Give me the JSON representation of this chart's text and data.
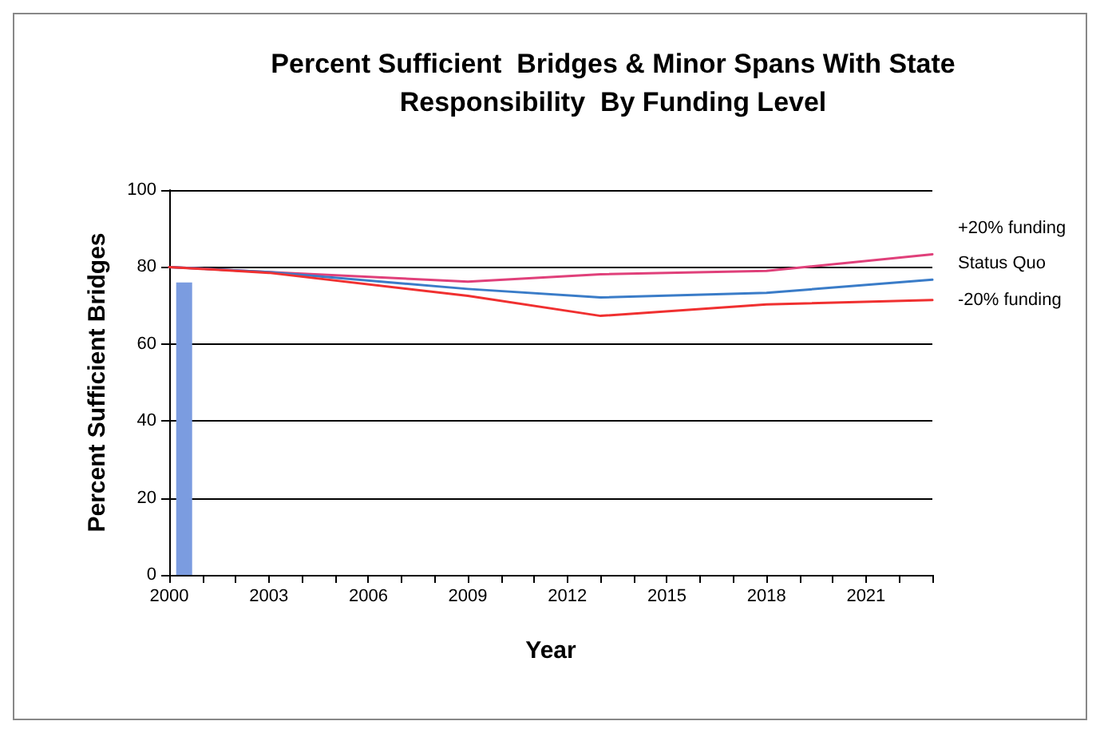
{
  "chart_data": {
    "type": "line",
    "title": "Percent Sufficient  Bridges & Minor Spans With State\nResponsibility  By Funding Level",
    "xlabel": "Year",
    "ylabel": "Percent Sufficient Bridges",
    "xlim": [
      2000,
      2023
    ],
    "xticks": [
      2000,
      {
        "value": 2001,
        "label": null
      },
      {
        "value": 2002,
        "label": null
      },
      2003,
      {
        "value": 2004,
        "label": null
      },
      {
        "value": 2005,
        "label": null
      },
      2006,
      {
        "value": 2007,
        "label": null
      },
      {
        "value": 2008,
        "label": null
      },
      2009,
      {
        "value": 2010,
        "label": null
      },
      {
        "value": 2011,
        "label": null
      },
      2012,
      {
        "value": 2013,
        "label": null
      },
      {
        "value": 2014,
        "label": null
      },
      2015,
      {
        "value": 2016,
        "label": null
      },
      {
        "value": 2017,
        "label": null
      },
      2018,
      {
        "value": 2019,
        "label": null
      },
      {
        "value": 2020,
        "label": null
      },
      2021,
      {
        "value": 2022,
        "label": null
      },
      {
        "value": 2023,
        "label": null
      }
    ],
    "ylim": [
      0,
      100
    ],
    "yticks": [
      0,
      20,
      40,
      60,
      80,
      100
    ],
    "grid": "y",
    "legend": false,
    "marker": "none",
    "line_style": "solid",
    "series": [
      {
        "type": "bar",
        "color": "#7b9ce0",
        "x": [
          2000.45
        ],
        "values": [
          76
        ]
      },
      {
        "name": "+20% funding",
        "color": "#e0407a",
        "x": [
          2000,
          2003,
          2009,
          2013,
          2018,
          2023
        ],
        "values": [
          80,
          78.7,
          76.2,
          78.1,
          79,
          83.3
        ]
      },
      {
        "name": "Status Quo",
        "color": "#3a7cc8",
        "x": [
          2000,
          2003,
          2009,
          2013,
          2018,
          2023
        ],
        "values": [
          80,
          78.7,
          74.3,
          72.1,
          73.3,
          76.7
        ]
      },
      {
        "name": "-20% funding",
        "color": "#f03030",
        "x": [
          2000,
          2003,
          2009,
          2013,
          2018,
          2023
        ],
        "values": [
          80,
          78.5,
          72.5,
          67.3,
          70.3,
          71.4
        ]
      }
    ]
  }
}
